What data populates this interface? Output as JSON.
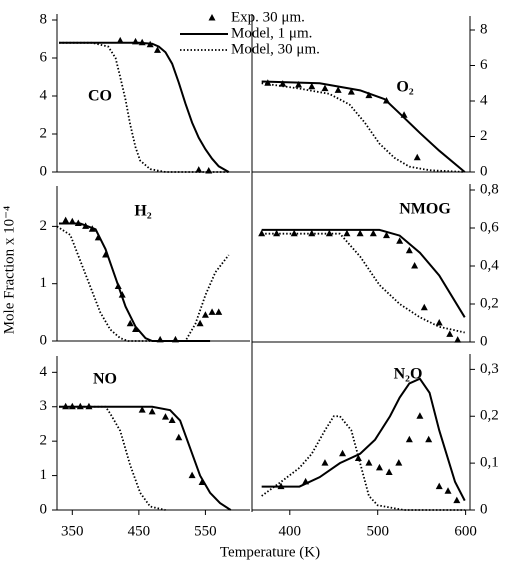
{
  "figure": {
    "xlabel": "Temperature (K)",
    "ylabel": "Mole Fraction x 10⁻⁴"
  },
  "chart_data": [
    {
      "type": "line",
      "title": "CO",
      "xlim": [
        327,
        617
      ],
      "ylim": [
        0,
        8
      ],
      "yticks": [
        0,
        2,
        4,
        6,
        8
      ],
      "series": [
        {
          "name": "Exp. 30 μm.",
          "color": "#000000",
          "style": "triangle",
          "x": [
            422,
            445,
            455,
            467,
            478,
            540,
            555
          ],
          "values": [
            6.9,
            6.85,
            6.8,
            6.7,
            6.4,
            0.1,
            0.05
          ]
        },
        {
          "name": "Model, 1 μm.",
          "color": "#000000",
          "style": "solid",
          "x": [
            330,
            400,
            450,
            470,
            480,
            490,
            500,
            510,
            520,
            530,
            540,
            550,
            560,
            570,
            585
          ],
          "values": [
            6.8,
            6.8,
            6.8,
            6.75,
            6.6,
            6.3,
            5.7,
            4.7,
            3.6,
            2.6,
            1.8,
            1.2,
            0.7,
            0.3,
            0
          ]
        },
        {
          "name": "Model, 30 μm.",
          "color": "#000000",
          "style": "dotted",
          "x": [
            330,
            380,
            404,
            415,
            422,
            430,
            437,
            445,
            452,
            467,
            490,
            585
          ],
          "values": [
            6.8,
            6.8,
            6.6,
            6.0,
            5.0,
            3.8,
            2.5,
            1.3,
            0.6,
            0.15,
            0,
            0
          ]
        }
      ]
    },
    {
      "type": "line",
      "title": "O₂",
      "xlim": [
        357,
        605
      ],
      "ylim": [
        0,
        8.45
      ],
      "yticks": [
        0,
        2,
        4,
        6,
        8
      ],
      "series": [
        {
          "color": "#000000",
          "style": "triangle",
          "x": [
            375,
            392,
            410,
            425,
            440,
            455,
            470,
            490,
            510,
            530,
            545
          ],
          "values": [
            5.0,
            4.95,
            4.9,
            4.8,
            4.7,
            4.6,
            4.5,
            4.3,
            4.0,
            3.2,
            0.8
          ]
        },
        {
          "color": "#000000",
          "style": "solid",
          "x": [
            368,
            434,
            480,
            508,
            525,
            548,
            570,
            599
          ],
          "values": [
            5.1,
            5.0,
            4.6,
            4.1,
            3.3,
            2.2,
            1.2,
            0
          ]
        },
        {
          "color": "#000000",
          "style": "dotted",
          "x": [
            368,
            411,
            445,
            468,
            485,
            502,
            519,
            536,
            559,
            599
          ],
          "values": [
            5.0,
            4.7,
            4.4,
            3.8,
            2.8,
            1.6,
            0.8,
            0.3,
            0.1,
            0
          ]
        }
      ]
    },
    {
      "type": "line",
      "title": "H₂",
      "xlim": [
        327,
        617
      ],
      "ylim": [
        0,
        2.6
      ],
      "yticks": [
        0,
        1,
        2
      ],
      "series": [
        {
          "color": "#000000",
          "style": "triangle",
          "x": [
            340,
            350,
            359,
            370,
            380,
            389,
            400,
            419,
            425,
            437,
            445,
            482,
            505,
            542,
            550,
            560,
            570
          ],
          "values": [
            2.1,
            2.08,
            2.05,
            2.0,
            1.95,
            1.8,
            1.5,
            0.95,
            0.8,
            0.3,
            0.2,
            0.02,
            0.02,
            0.3,
            0.45,
            0.5,
            0.5
          ]
        },
        {
          "color": "#000000",
          "style": "solid",
          "x": [
            330,
            362,
            385,
            400,
            415,
            430,
            445,
            460,
            470,
            557
          ],
          "values": [
            2.05,
            2.05,
            1.95,
            1.6,
            1.1,
            0.6,
            0.25,
            0.05,
            0,
            0
          ]
        },
        {
          "color": "#000000",
          "style": "dotted",
          "x": [
            327,
            347,
            362,
            377,
            392,
            407,
            422,
            434,
            520,
            535,
            550,
            565,
            585
          ],
          "values": [
            2.0,
            1.85,
            1.4,
            0.95,
            0.5,
            0.2,
            0.05,
            0,
            0,
            0.3,
            0.8,
            1.2,
            1.5
          ]
        }
      ]
    },
    {
      "type": "line",
      "title": "NMOG",
      "xlim": [
        357,
        605
      ],
      "ylim": [
        0,
        0.8
      ],
      "yticks": [
        0,
        {
          "value": 0.2,
          "label": "0,2"
        },
        {
          "value": 0.4,
          "label": "0,4"
        },
        {
          "value": 0.6,
          "label": "0,6"
        },
        {
          "value": 0.8,
          "label": "0,8"
        }
      ],
      "series": [
        {
          "color": "#000000",
          "style": "triangle",
          "x": [
            368,
            385,
            405,
            425,
            445,
            465,
            480,
            495,
            510,
            525,
            536,
            542,
            553,
            570,
            582,
            591
          ],
          "values": [
            0.57,
            0.57,
            0.57,
            0.57,
            0.57,
            0.57,
            0.57,
            0.57,
            0.56,
            0.53,
            0.48,
            0.4,
            0.18,
            0.1,
            0.04,
            0.01
          ]
        },
        {
          "color": "#000000",
          "style": "solid",
          "x": [
            368,
            450,
            502,
            525,
            548,
            570,
            599
          ],
          "values": [
            0.59,
            0.59,
            0.59,
            0.56,
            0.47,
            0.35,
            0.13
          ]
        },
        {
          "color": "#000000",
          "style": "dotted",
          "x": [
            368,
            457,
            480,
            502,
            525,
            548,
            570,
            599
          ],
          "values": [
            0.57,
            0.57,
            0.45,
            0.3,
            0.2,
            0.13,
            0.08,
            0.05
          ]
        }
      ]
    },
    {
      "type": "line",
      "title": "NO",
      "xlim": [
        327,
        617
      ],
      "ylim": [
        0,
        4.3
      ],
      "yticks": [
        0,
        1,
        2,
        3,
        4
      ],
      "xticks": [
        350,
        450,
        550
      ],
      "series": [
        {
          "color": "#000000",
          "style": "triangle",
          "x": [
            340,
            350,
            362,
            375,
            455,
            470,
            490,
            500,
            510,
            530,
            545
          ],
          "values": [
            3.0,
            3.0,
            3.0,
            3.0,
            2.9,
            2.85,
            2.7,
            2.6,
            2.1,
            1.0,
            0.8
          ]
        },
        {
          "color": "#000000",
          "style": "solid",
          "x": [
            330,
            470,
            497,
            512,
            527,
            542,
            557,
            572,
            588
          ],
          "values": [
            3.0,
            3.0,
            2.9,
            2.6,
            1.8,
            1.0,
            0.5,
            0.2,
            0
          ]
        },
        {
          "color": "#000000",
          "style": "dotted",
          "x": [
            330,
            400,
            407,
            422,
            437,
            452,
            467,
            490
          ],
          "values": [
            3.0,
            3.0,
            2.8,
            2.3,
            1.3,
            0.5,
            0.1,
            0
          ]
        }
      ]
    },
    {
      "type": "line",
      "title": "N₂O",
      "xlim": [
        357,
        605
      ],
      "ylim": [
        0,
        0.32
      ],
      "yticks": [
        0,
        {
          "value": 0.1,
          "label": "0,1"
        },
        {
          "value": 0.2,
          "label": "0,2"
        },
        {
          "value": 0.3,
          "label": "0,3"
        }
      ],
      "xticks": [
        400,
        500,
        600
      ],
      "series": [
        {
          "color": "#000000",
          "style": "triangle",
          "x": [
            390,
            418,
            440,
            460,
            478,
            490,
            502,
            513,
            524,
            536,
            548,
            558,
            570,
            580,
            590
          ],
          "values": [
            0.05,
            0.06,
            0.1,
            0.12,
            0.11,
            0.1,
            0.09,
            0.08,
            0.1,
            0.15,
            0.2,
            0.15,
            0.05,
            0.04,
            0.02
          ]
        },
        {
          "color": "#000000",
          "style": "solid",
          "x": [
            368,
            411,
            434,
            457,
            480,
            497,
            514,
            525,
            536,
            548,
            559,
            570,
            588,
            599
          ],
          "values": [
            0.05,
            0.05,
            0.07,
            0.1,
            0.12,
            0.15,
            0.2,
            0.24,
            0.27,
            0.28,
            0.25,
            0.17,
            0.06,
            0.02
          ]
        },
        {
          "color": "#000000",
          "style": "dotted",
          "x": [
            368,
            390,
            411,
            425,
            440,
            450,
            457,
            470,
            480,
            490,
            500,
            530,
            599
          ],
          "values": [
            0.03,
            0.06,
            0.09,
            0.12,
            0.17,
            0.2,
            0.2,
            0.17,
            0.1,
            0.03,
            0.01,
            0,
            0
          ]
        }
      ]
    }
  ]
}
